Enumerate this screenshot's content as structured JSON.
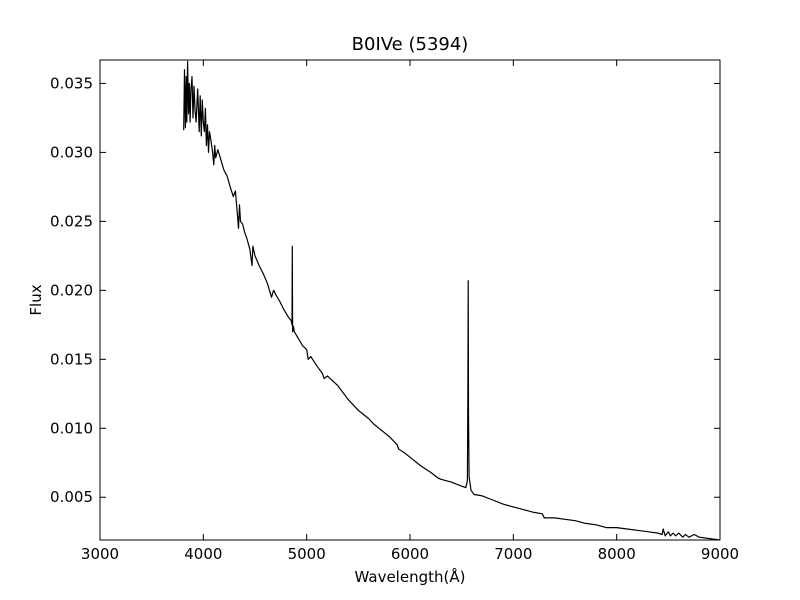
{
  "chart_data": {
    "type": "line",
    "title": "B0IVe (5394)",
    "xlabel": "Wavelength(Å)",
    "ylabel": "Flux",
    "xlim": [
      3000,
      9000
    ],
    "ylim": [
      0.0019,
      0.0367
    ],
    "xticks": [
      3000,
      4000,
      5000,
      6000,
      7000,
      8000,
      9000
    ],
    "yticks": [
      0.005,
      0.01,
      0.015,
      0.02,
      0.025,
      0.03,
      0.035
    ],
    "grid": false,
    "legend": "none",
    "line_color": "#000000",
    "series": [
      {
        "x": [
          3810,
          3818,
          3826,
          3834,
          3840,
          3848,
          3856,
          3864,
          3872,
          3880,
          3890,
          3900,
          3910,
          3920,
          3930,
          3945,
          3960,
          3970,
          3980,
          3990,
          4000,
          4010,
          4020,
          4030,
          4040,
          4050,
          4060,
          4075,
          4090,
          4101,
          4110,
          4120,
          4140,
          4160,
          4180,
          4200,
          4230,
          4260,
          4290,
          4310,
          4330,
          4340,
          4350,
          4360,
          4380,
          4400,
          4420,
          4450,
          4471,
          4480,
          4500,
          4540,
          4580,
          4620,
          4660,
          4680,
          4700,
          4740,
          4780,
          4820,
          4850,
          4858,
          4861,
          4864,
          4872,
          4880,
          4920,
          4960,
          5000,
          5015,
          5040,
          5100,
          5150,
          5170,
          5200,
          5300,
          5400,
          5500,
          5600,
          5650,
          5700,
          5800,
          5876,
          5890,
          5950,
          6000,
          6100,
          6200,
          6270,
          6300,
          6400,
          6500,
          6540,
          6555,
          6560,
          6563,
          6566,
          6572,
          6590,
          6620,
          6700,
          6800,
          6900,
          7000,
          7100,
          7200,
          7280,
          7300,
          7400,
          7500,
          7600,
          7700,
          7800,
          7900,
          8000,
          8100,
          8200,
          8300,
          8400,
          8440,
          8450,
          8470,
          8500,
          8520,
          8545,
          8570,
          8600,
          8640,
          8665,
          8700,
          8750,
          8800,
          8900,
          9000
        ],
        "y": [
          0.0316,
          0.036,
          0.0318,
          0.0355,
          0.0322,
          0.0366,
          0.0328,
          0.035,
          0.0322,
          0.0345,
          0.0355,
          0.0325,
          0.0348,
          0.033,
          0.0322,
          0.0346,
          0.0315,
          0.0341,
          0.0312,
          0.0338,
          0.0322,
          0.0315,
          0.0332,
          0.0305,
          0.032,
          0.03,
          0.0315,
          0.0308,
          0.03,
          0.0291,
          0.0305,
          0.0296,
          0.0302,
          0.0297,
          0.0292,
          0.0287,
          0.0283,
          0.0275,
          0.0268,
          0.0272,
          0.0255,
          0.0245,
          0.0262,
          0.025,
          0.0248,
          0.0242,
          0.0238,
          0.023,
          0.0218,
          0.0232,
          0.0225,
          0.0218,
          0.0212,
          0.0205,
          0.0195,
          0.02,
          0.0197,
          0.0192,
          0.0186,
          0.0181,
          0.0178,
          0.0175,
          0.0232,
          0.017,
          0.0174,
          0.017,
          0.0165,
          0.016,
          0.0157,
          0.015,
          0.0152,
          0.0145,
          0.014,
          0.0136,
          0.0138,
          0.0131,
          0.0121,
          0.0113,
          0.0107,
          0.0103,
          0.01,
          0.0094,
          0.0088,
          0.0085,
          0.0082,
          0.0079,
          0.0073,
          0.0068,
          0.0064,
          0.0063,
          0.0061,
          0.0058,
          0.0057,
          0.0062,
          0.013,
          0.0207,
          0.011,
          0.0065,
          0.0055,
          0.0052,
          0.0051,
          0.0048,
          0.0045,
          0.0043,
          0.0041,
          0.0039,
          0.0038,
          0.0035,
          0.0035,
          0.0034,
          0.0033,
          0.0031,
          0.003,
          0.0028,
          0.0028,
          0.0027,
          0.0026,
          0.0025,
          0.0024,
          0.0023,
          0.0027,
          0.0022,
          0.0025,
          0.0022,
          0.0024,
          0.0022,
          0.0024,
          0.0021,
          0.0023,
          0.0021,
          0.0023,
          0.0021,
          0.002,
          0.0019
        ]
      }
    ]
  }
}
